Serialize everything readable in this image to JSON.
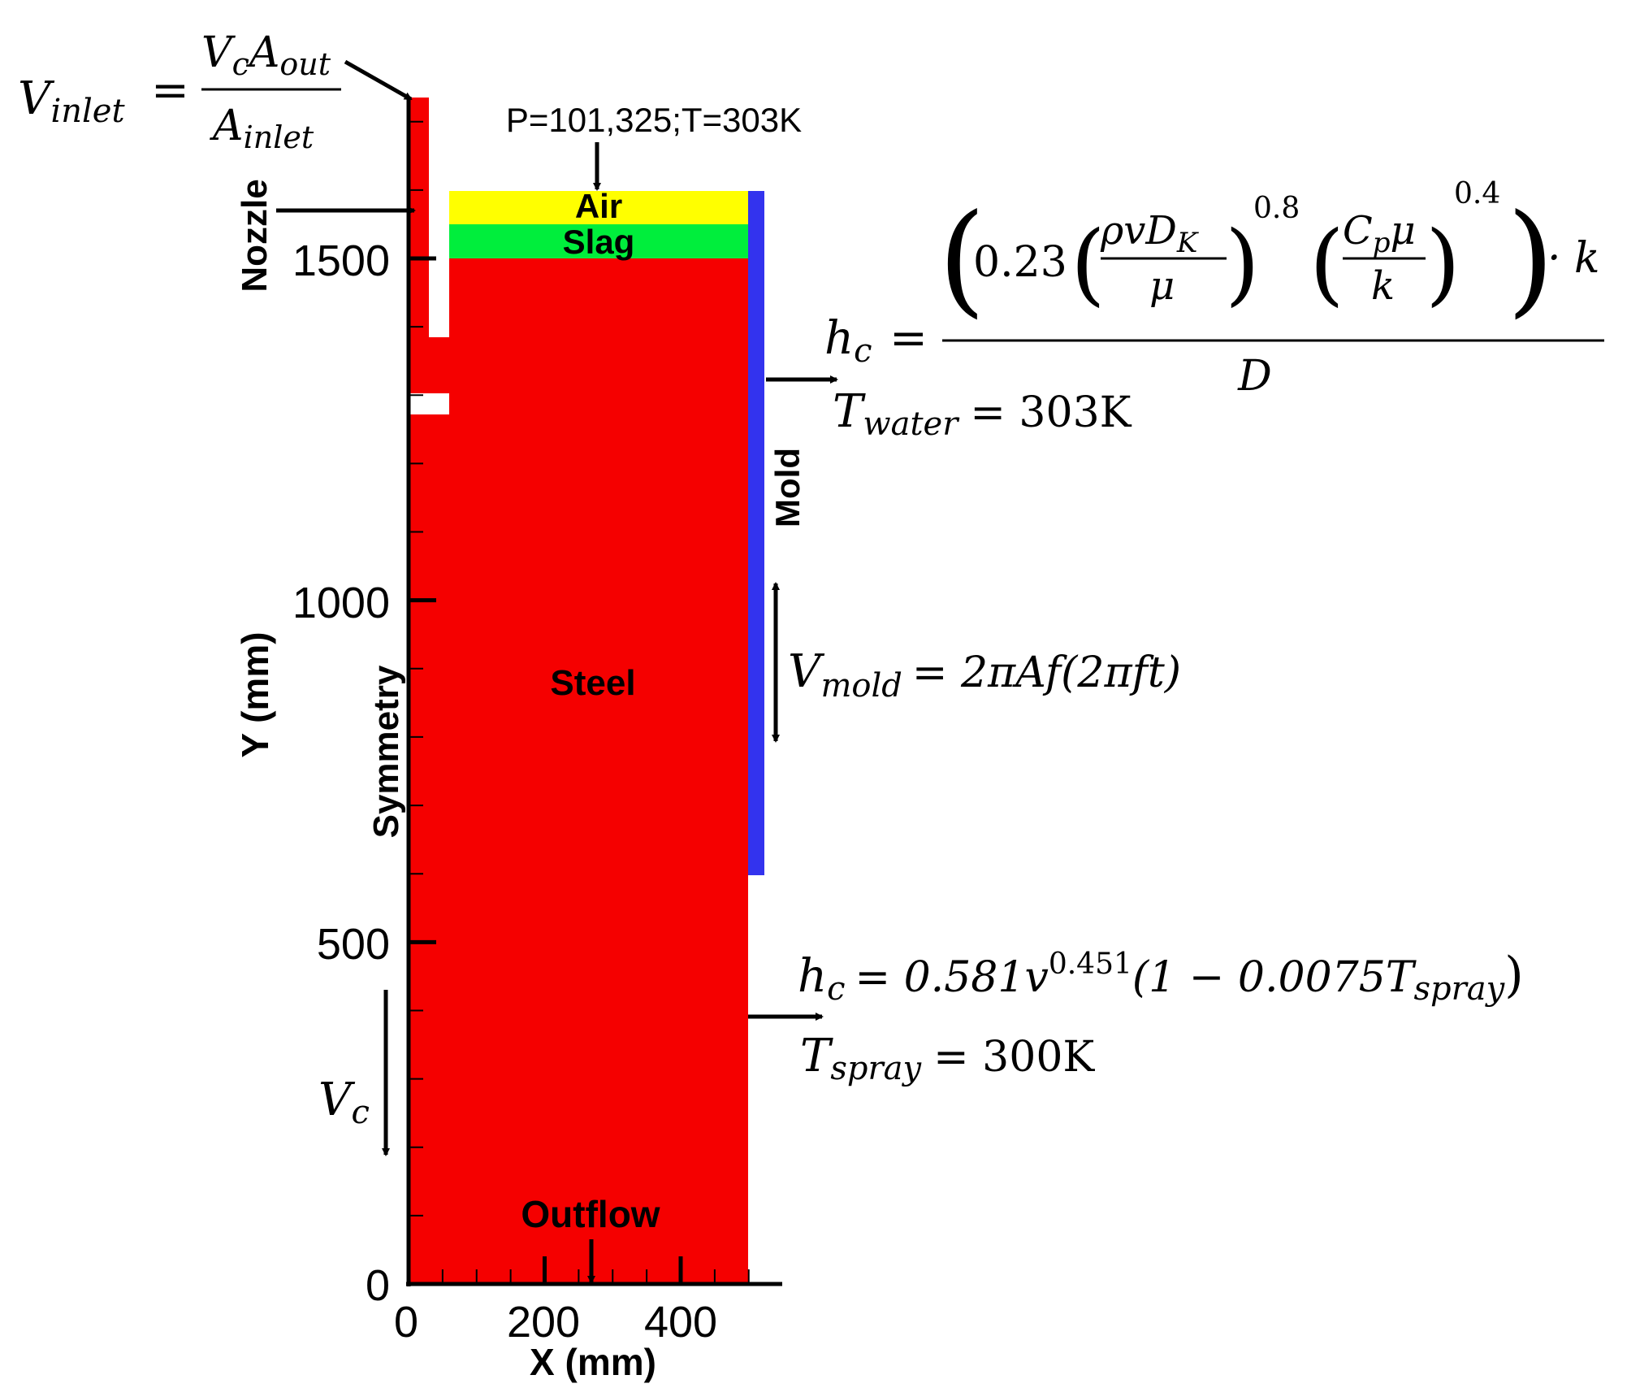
{
  "chart_data": {
    "type": "diagram",
    "xlabel": "X (mm)",
    "ylabel": "Y (mm)",
    "x_ticks": [
      0,
      200,
      400
    ],
    "y_ticks": [
      0,
      500,
      1000,
      1500
    ],
    "regions": [
      {
        "name": "Steel",
        "color": "#f50000"
      },
      {
        "name": "Slag",
        "color": "#00ee3c"
      },
      {
        "name": "Air",
        "color": "#ffff00"
      },
      {
        "name": "Mold",
        "color": "#3333ee"
      }
    ]
  },
  "labels": {
    "nozzle": "Nozzle",
    "symmetry": "Symmetry",
    "air": "Air",
    "slag": "Slag",
    "steel": "Steel",
    "mold": "Mold",
    "outflow": "Outflow",
    "top_bc": "P=101,325;T=303K"
  },
  "equations": {
    "inlet": {
      "lhs_main": "V",
      "lhs_sub": "inlet",
      "num_v": "V",
      "num_v_sub": "c",
      "num_a": "A",
      "num_a_sub": "out",
      "den_a": "A",
      "den_a_sub": "inlet"
    },
    "mold_hc": {
      "lhs_main": "h",
      "lhs_sub": "c",
      "coef": "0.23",
      "rho_v_d": "ρvD",
      "d_sub": "K",
      "mu": "μ",
      "exp1": "0.8",
      "cp": "C",
      "cp_sub": "p",
      "cp_mu": "μ",
      "k_den": "k",
      "exp2": "0.4",
      "k_mul": "· k",
      "den": "D"
    },
    "twater": {
      "main": "T",
      "sub": "water",
      "value": "= 303K"
    },
    "vmold": {
      "main": "V",
      "sub": "mold",
      "value": "= 2πAf(2πft)"
    },
    "spray_hc": {
      "lhs_main": "h",
      "lhs_sub": "c",
      "value_a": "= 0.581v",
      "exp": "0.451",
      "value_b": "(1 − 0.0075T",
      "t_sub": "spray",
      "close": ")"
    },
    "tspray": {
      "main": "T",
      "sub": "spray",
      "value": "= 300K"
    },
    "vc": {
      "main": "V",
      "sub": "c"
    }
  }
}
